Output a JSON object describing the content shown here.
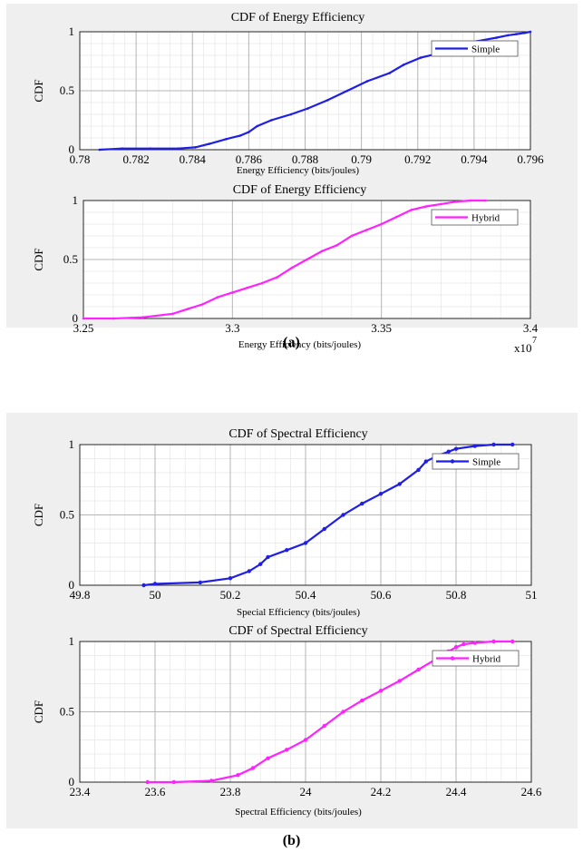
{
  "captions": {
    "a": "(a)",
    "b": "(b)"
  },
  "chart_data": [
    {
      "type": "line",
      "title": "CDF of Energy Efficiency",
      "xlabel": "Energy Efficiency (bits/joules)",
      "ylabel": "CDF",
      "xlim": [
        0.78,
        0.796
      ],
      "ylim": [
        0,
        1
      ],
      "xticks": [
        "0.78",
        "0.782",
        "0.784",
        "0.786",
        "0.788",
        "0.79",
        "0.792",
        "0.794",
        "0.796"
      ],
      "xtick_values": [
        0.78,
        0.782,
        0.784,
        0.786,
        0.788,
        0.79,
        0.792,
        0.794,
        0.796
      ],
      "yticks": [
        "0",
        "0.5",
        "1"
      ],
      "ytick_values": [
        0,
        0.5,
        1
      ],
      "x_exponent": "",
      "grid": true,
      "legend_position": "top-right",
      "series": [
        {
          "name": "Simple",
          "color": "#1f1fe6",
          "x": [
            0.7807,
            0.7815,
            0.7825,
            0.7835,
            0.7841,
            0.7846,
            0.7852,
            0.7857,
            0.786,
            0.7863,
            0.7868,
            0.7875,
            0.7881,
            0.7888,
            0.7895,
            0.7902,
            0.791,
            0.7915,
            0.7921,
            0.7928,
            0.7935,
            0.7941,
            0.7948,
            0.7952,
            0.7955,
            0.7958,
            0.796
          ],
          "y": [
            0.0,
            0.01,
            0.01,
            0.01,
            0.02,
            0.05,
            0.09,
            0.12,
            0.15,
            0.2,
            0.25,
            0.3,
            0.35,
            0.42,
            0.5,
            0.58,
            0.65,
            0.72,
            0.78,
            0.82,
            0.88,
            0.92,
            0.95,
            0.97,
            0.98,
            0.99,
            1.0
          ]
        }
      ]
    },
    {
      "type": "line",
      "title": "CDF of Energy Efficiency",
      "xlabel": "Energy Efficiency (bits/joules)",
      "ylabel": "CDF",
      "xlim": [
        3.25,
        3.4
      ],
      "ylim": [
        0,
        1
      ],
      "xticks": [
        "3.25",
        "3.3",
        "3.35",
        "3.4"
      ],
      "xtick_values": [
        3.25,
        3.3,
        3.35,
        3.4
      ],
      "yticks": [
        "0",
        "0.5",
        "1"
      ],
      "ytick_values": [
        0,
        0.5,
        1
      ],
      "x_exponent": "x10",
      "x_exponent_power": "7",
      "grid": true,
      "legend_position": "top-right",
      "series": [
        {
          "name": "Hybrid",
          "color": "#ff22ff",
          "x": [
            3.25,
            3.26,
            3.27,
            3.28,
            3.285,
            3.29,
            3.295,
            3.3,
            3.305,
            3.31,
            3.315,
            3.32,
            3.325,
            3.33,
            3.335,
            3.34,
            3.345,
            3.35,
            3.355,
            3.36,
            3.365,
            3.37,
            3.375,
            3.38,
            3.385
          ],
          "y": [
            0.0,
            0.0,
            0.01,
            0.04,
            0.08,
            0.12,
            0.18,
            0.22,
            0.26,
            0.3,
            0.35,
            0.43,
            0.5,
            0.57,
            0.62,
            0.7,
            0.75,
            0.8,
            0.86,
            0.92,
            0.95,
            0.97,
            0.99,
            1.0,
            1.0
          ]
        }
      ]
    },
    {
      "type": "line",
      "title": "CDF of Spectral Efficiency",
      "xlabel": "Special Efficiency (bits/joules)",
      "ylabel": "CDF",
      "xlim": [
        49.8,
        51
      ],
      "ylim": [
        0,
        1
      ],
      "xticks": [
        "49.8",
        "50",
        "50.2",
        "50.4",
        "50.6",
        "50.8",
        "51"
      ],
      "xtick_values": [
        49.8,
        50,
        50.2,
        50.4,
        50.6,
        50.8,
        51
      ],
      "yticks": [
        "0",
        "0.5",
        "1"
      ],
      "ytick_values": [
        0,
        0.5,
        1
      ],
      "x_exponent": "",
      "grid": true,
      "legend_position": "top-right",
      "series": [
        {
          "name": "Simple",
          "color": "#1f1fe6",
          "x": [
            49.97,
            50.0,
            50.12,
            50.2,
            50.25,
            50.28,
            50.3,
            50.35,
            50.4,
            50.45,
            50.5,
            50.55,
            50.6,
            50.65,
            50.7,
            50.72,
            50.75,
            50.78,
            50.8,
            50.85,
            50.9,
            50.95
          ],
          "y": [
            0.0,
            0.01,
            0.02,
            0.05,
            0.1,
            0.15,
            0.2,
            0.25,
            0.3,
            0.4,
            0.5,
            0.58,
            0.65,
            0.72,
            0.82,
            0.88,
            0.92,
            0.95,
            0.97,
            0.99,
            1.0,
            1.0
          ]
        }
      ]
    },
    {
      "type": "line",
      "title": "CDF of Spectral Efficiency",
      "xlabel": "Spectral Efficiency (bits/joules)",
      "ylabel": "CDF",
      "xlim": [
        23.4,
        24.6
      ],
      "ylim": [
        0,
        1
      ],
      "xticks": [
        "23.4",
        "23.6",
        "23.8",
        "24",
        "24.2",
        "24.4",
        "24.6"
      ],
      "xtick_values": [
        23.4,
        23.6,
        23.8,
        24,
        24.2,
        24.4,
        24.6
      ],
      "yticks": [
        "0",
        "0.5",
        "1"
      ],
      "ytick_values": [
        0,
        0.5,
        1
      ],
      "x_exponent": "",
      "grid": true,
      "legend_position": "top-right",
      "series": [
        {
          "name": "Hybrid",
          "color": "#ff22ff",
          "x": [
            23.58,
            23.65,
            23.75,
            23.82,
            23.86,
            23.9,
            23.95,
            24.0,
            24.05,
            24.1,
            24.15,
            24.2,
            24.25,
            24.3,
            24.35,
            24.38,
            24.4,
            24.42,
            24.45,
            24.5,
            24.55
          ],
          "y": [
            0.0,
            0.0,
            0.01,
            0.05,
            0.1,
            0.17,
            0.23,
            0.3,
            0.4,
            0.5,
            0.58,
            0.65,
            0.72,
            0.8,
            0.88,
            0.93,
            0.96,
            0.98,
            0.99,
            1.0,
            1.0
          ]
        }
      ]
    }
  ]
}
